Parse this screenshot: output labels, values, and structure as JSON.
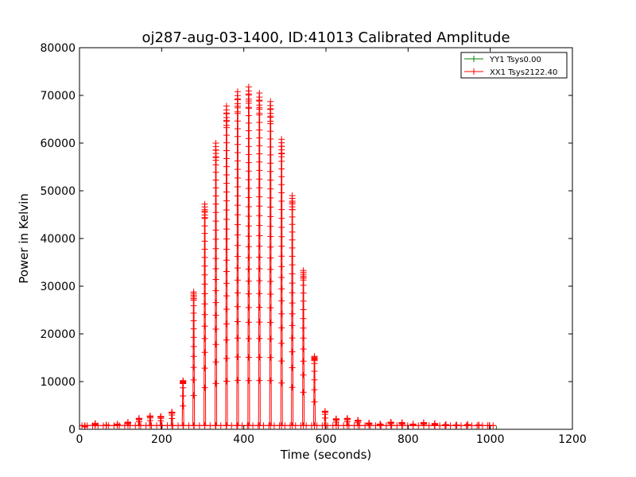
{
  "chart_data": {
    "type": "line",
    "title": "oj287-aug-03-1400, ID:41013 Calibrated Amplitude",
    "xlabel": "Time (seconds)",
    "ylabel": "Power in Kelvin",
    "xlim": [
      0,
      1200
    ],
    "ylim": [
      0,
      80000
    ],
    "xticks": [
      "0",
      "200",
      "400",
      "600",
      "800",
      "1000",
      "1200"
    ],
    "yticks": [
      "0",
      "10000",
      "20000",
      "30000",
      "40000",
      "50000",
      "60000",
      "70000",
      "80000"
    ],
    "grid": false,
    "legend_position": "top-right",
    "series": [
      {
        "name": "YY1 Tsys0.00",
        "color": "#008000",
        "marker": "plus",
        "x": [
          0,
          1015
        ],
        "y": [
          0,
          0
        ]
      },
      {
        "name": "XX1 Tsys2122.40",
        "color": "#ff0000",
        "marker": "plus",
        "baseline": 800,
        "scan_range": [
          0,
          1015
        ],
        "baseline_marker_spacing": 26,
        "peaks": [
          {
            "x": 13,
            "y": 500
          },
          {
            "x": 38,
            "y": 1200
          },
          {
            "x": 65,
            "y": 900
          },
          {
            "x": 92,
            "y": 1100
          },
          {
            "x": 118,
            "y": 1500
          },
          {
            "x": 145,
            "y": 2300
          },
          {
            "x": 172,
            "y": 2800
          },
          {
            "x": 198,
            "y": 2700
          },
          {
            "x": 225,
            "y": 3600
          },
          {
            "x": 252,
            "y": 10200
          },
          {
            "x": 278,
            "y": 28800
          },
          {
            "x": 305,
            "y": 47200
          },
          {
            "x": 332,
            "y": 60000
          },
          {
            "x": 358,
            "y": 67800
          },
          {
            "x": 385,
            "y": 70800
          },
          {
            "x": 412,
            "y": 71800
          },
          {
            "x": 438,
            "y": 70500
          },
          {
            "x": 465,
            "y": 68700
          },
          {
            "x": 492,
            "y": 60800
          },
          {
            "x": 518,
            "y": 49000
          },
          {
            "x": 545,
            "y": 33300
          },
          {
            "x": 572,
            "y": 15300
          },
          {
            "x": 598,
            "y": 3800
          },
          {
            "x": 625,
            "y": 2200
          },
          {
            "x": 652,
            "y": 2300
          },
          {
            "x": 678,
            "y": 1900
          },
          {
            "x": 705,
            "y": 1300
          },
          {
            "x": 732,
            "y": 1100
          },
          {
            "x": 758,
            "y": 1500
          },
          {
            "x": 785,
            "y": 1400
          },
          {
            "x": 812,
            "y": 1100
          },
          {
            "x": 838,
            "y": 1400
          },
          {
            "x": 865,
            "y": 1200
          },
          {
            "x": 892,
            "y": 1000
          },
          {
            "x": 918,
            "y": 900
          },
          {
            "x": 945,
            "y": 1000
          },
          {
            "x": 972,
            "y": 900
          },
          {
            "x": 998,
            "y": 800
          }
        ]
      }
    ]
  }
}
